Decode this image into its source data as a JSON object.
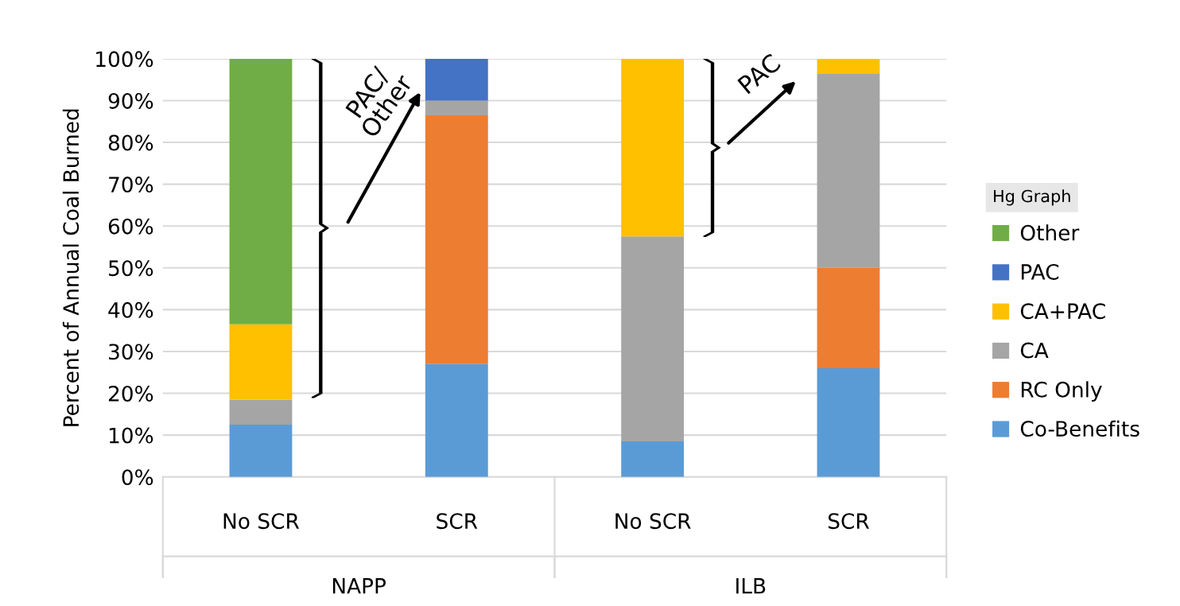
{
  "chart_data": {
    "type": "bar",
    "stacked": true,
    "ylabel": "Percent of Annual Coal Burned",
    "legend_title": "Hg Graph",
    "categories": [
      "No SCR",
      "SCR",
      "No SCR",
      "SCR"
    ],
    "series": [
      {
        "name": "Co-Benefits",
        "color": "#5b9bd5",
        "values": [
          12.5,
          27,
          8.5,
          26
        ]
      },
      {
        "name": "RC Only",
        "color": "#ed7d31",
        "values": [
          null,
          59.5,
          null,
          24
        ]
      },
      {
        "name": "CA",
        "color": "#a5a5a5",
        "values": [
          6,
          3.5,
          49,
          46.5
        ]
      },
      {
        "name": "CA+PAC",
        "color": "#ffc000",
        "values": [
          18,
          null,
          42.5,
          3.5
        ]
      },
      {
        "name": "PAC",
        "color": "#4472c4",
        "values": [
          null,
          10,
          null,
          null
        ]
      },
      {
        "name": "Other",
        "color": "#70ad47",
        "values": [
          63.5,
          null,
          null,
          null
        ]
      }
    ],
    "ylim": [
      0,
      100
    ],
    "yticks": [
      {
        "value": 0,
        "label": "0%"
      },
      {
        "value": 10,
        "label": "10%"
      },
      {
        "value": 20,
        "label": "20%"
      },
      {
        "value": 30,
        "label": "30%"
      },
      {
        "value": 40,
        "label": "40%"
      },
      {
        "value": 50,
        "label": "50%"
      },
      {
        "value": 60,
        "label": "60%"
      },
      {
        "value": 70,
        "label": "70%"
      },
      {
        "value": 80,
        "label": "80%"
      },
      {
        "value": 90,
        "label": "90%"
      },
      {
        "value": 100,
        "label": "100%"
      }
    ],
    "grid": "y",
    "legend": "right",
    "annotations": [
      "PAC/\nOther",
      "PAC",
      "NAPP",
      "ILB"
    ]
  }
}
